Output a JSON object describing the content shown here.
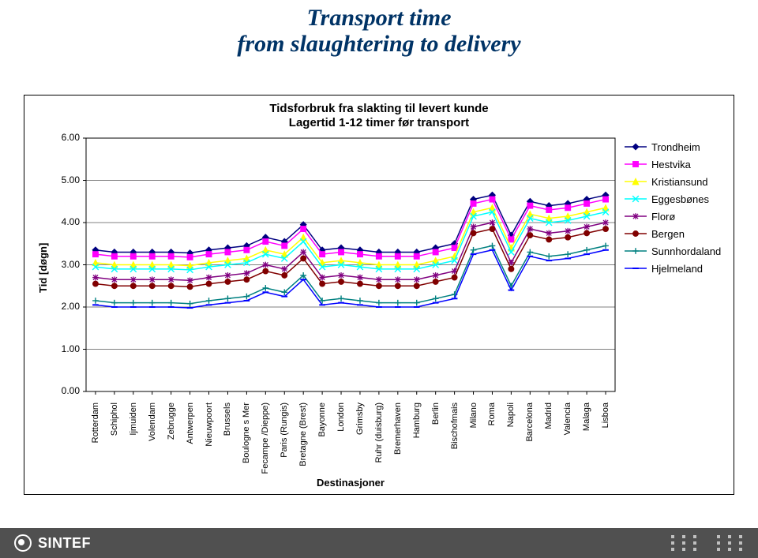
{
  "title_line1": "Transport time",
  "title_line2": "from slaughtering to delivery",
  "title_color": "#003366",
  "title_fontsize": 30,
  "chart": {
    "type": "line",
    "title_line1": "Tidsforbruk fra slakting til levert kunde",
    "title_line2": "Lagertid 1-12 timer før transport",
    "y_axis_label": "Tid [døgn]",
    "x_axis_label": "Destinasjoner",
    "ylim": [
      0,
      6
    ],
    "ytick_step": 1,
    "ytick_labels": [
      "0.00",
      "1.00",
      "2.00",
      "3.00",
      "4.00",
      "5.00",
      "6.00"
    ],
    "background_color": "#ffffff",
    "grid_color": "#000000",
    "tick_font_size": 12,
    "axis_label_font_size": 13,
    "destinations": [
      "Rotterdam",
      "Schiphol",
      "Ijmuiden",
      "Volendam",
      "Zebrugge",
      "Antwerpen",
      "Nieuwpoort",
      "Brussels",
      "Boulogne s Mer",
      "Fecampe /Dieppe)",
      "Paris (Rungis)",
      "Bretagne (Brest)",
      "Bayonne",
      "London",
      "Grimsby",
      "Ruhr (duisburg)",
      "Bremerhaven",
      "Hamburg",
      "Berlin",
      "Bischofmais",
      "Milano",
      "Roma",
      "Napoli",
      "Barcelona",
      "Madrid",
      "Valencia",
      "Malaga",
      "Lisboa"
    ],
    "series": [
      {
        "name": "Trondheim",
        "color": "#000080",
        "marker": "diamond",
        "values": [
          3.35,
          3.3,
          3.3,
          3.3,
          3.3,
          3.28,
          3.35,
          3.4,
          3.45,
          3.65,
          3.55,
          3.95,
          3.35,
          3.4,
          3.35,
          3.3,
          3.3,
          3.3,
          3.4,
          3.5,
          4.55,
          4.65,
          3.7,
          4.5,
          4.4,
          4.45,
          4.55,
          4.65
        ]
      },
      {
        "name": "Hestvika",
        "color": "#ff00ff",
        "marker": "square",
        "values": [
          3.25,
          3.2,
          3.2,
          3.2,
          3.2,
          3.18,
          3.25,
          3.3,
          3.35,
          3.55,
          3.45,
          3.85,
          3.25,
          3.3,
          3.25,
          3.2,
          3.2,
          3.2,
          3.3,
          3.4,
          4.45,
          4.55,
          3.6,
          4.4,
          4.3,
          4.35,
          4.45,
          4.55
        ]
      },
      {
        "name": "Kristiansund",
        "color": "#ffff00",
        "marker": "triangle",
        "values": [
          3.05,
          3.0,
          3.0,
          3.0,
          3.0,
          2.98,
          3.05,
          3.1,
          3.15,
          3.35,
          3.25,
          3.65,
          3.05,
          3.1,
          3.05,
          3.0,
          3.0,
          3.0,
          3.1,
          3.2,
          4.25,
          4.35,
          3.4,
          4.2,
          4.1,
          4.15,
          4.25,
          4.35
        ]
      },
      {
        "name": "Eggesbønes",
        "color": "#00ffff",
        "marker": "x",
        "values": [
          2.95,
          2.9,
          2.9,
          2.9,
          2.9,
          2.88,
          2.95,
          3.0,
          3.05,
          3.25,
          3.15,
          3.55,
          2.95,
          3.0,
          2.95,
          2.9,
          2.9,
          2.9,
          3.0,
          3.1,
          4.15,
          4.25,
          3.3,
          4.1,
          4.0,
          4.05,
          4.15,
          4.25
        ]
      },
      {
        "name": "Florø",
        "color": "#800080",
        "marker": "star",
        "values": [
          2.7,
          2.65,
          2.65,
          2.65,
          2.65,
          2.63,
          2.7,
          2.75,
          2.8,
          3.0,
          2.9,
          3.3,
          2.7,
          2.75,
          2.7,
          2.65,
          2.65,
          2.65,
          2.75,
          2.85,
          3.9,
          4.0,
          3.05,
          3.85,
          3.75,
          3.8,
          3.9,
          4.0
        ]
      },
      {
        "name": "Bergen",
        "color": "#800000",
        "marker": "circle",
        "values": [
          2.55,
          2.5,
          2.5,
          2.5,
          2.5,
          2.48,
          2.55,
          2.6,
          2.65,
          2.85,
          2.75,
          3.15,
          2.55,
          2.6,
          2.55,
          2.5,
          2.5,
          2.5,
          2.6,
          2.7,
          3.75,
          3.85,
          2.9,
          3.7,
          3.6,
          3.65,
          3.75,
          3.85
        ]
      },
      {
        "name": "Sunnhordaland",
        "color": "#008080",
        "marker": "plus",
        "values": [
          2.15,
          2.1,
          2.1,
          2.1,
          2.1,
          2.08,
          2.15,
          2.2,
          2.25,
          2.45,
          2.35,
          2.75,
          2.15,
          2.2,
          2.15,
          2.1,
          2.1,
          2.1,
          2.2,
          2.3,
          3.35,
          3.45,
          2.5,
          3.3,
          3.2,
          3.25,
          3.35,
          3.45
        ]
      },
      {
        "name": "Hjelmeland",
        "color": "#0000ff",
        "marker": "dash",
        "values": [
          2.05,
          2.0,
          2.0,
          2.0,
          2.0,
          1.98,
          2.05,
          2.1,
          2.15,
          2.35,
          2.25,
          2.65,
          2.05,
          2.1,
          2.05,
          2.0,
          2.0,
          2.0,
          2.1,
          2.2,
          3.25,
          3.35,
          2.4,
          3.2,
          3.1,
          3.15,
          3.25,
          3.35
        ]
      }
    ],
    "line_width": 1.5,
    "marker_size": 5
  },
  "footer": {
    "logo_text": "SINTEF"
  }
}
